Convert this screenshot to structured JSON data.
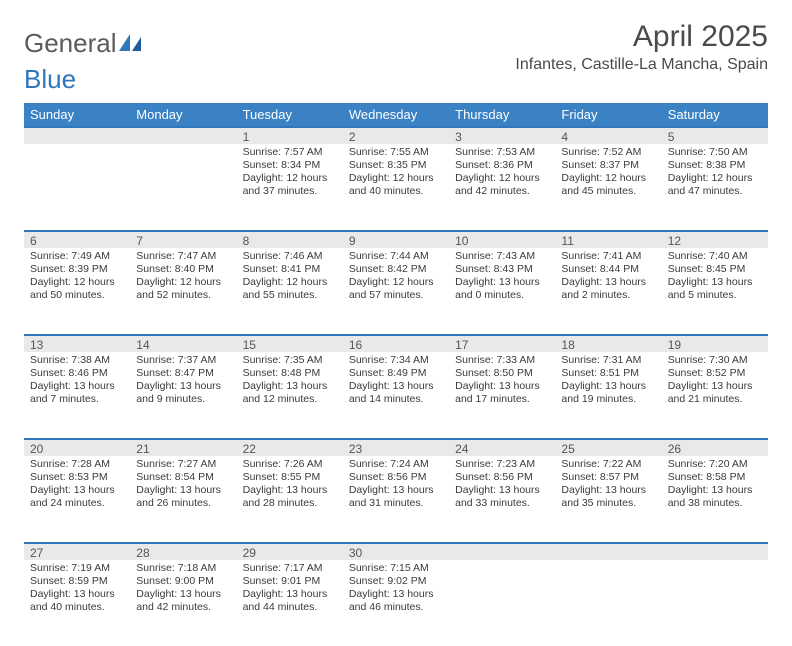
{
  "logo": {
    "text_a": "General",
    "text_b": "Blue"
  },
  "title": "April 2025",
  "location": "Infantes, Castille-La Mancha, Spain",
  "colors": {
    "header_bg": "#3a82c4",
    "header_text": "#ffffff",
    "daynum_bg": "#e9e9e9",
    "daynum_border": "#2f76ba",
    "body_text": "#3b3b3b",
    "title_text": "#4a4a4a",
    "logo_gray": "#5b5b5b",
    "logo_blue": "#2f76ba",
    "page_bg": "#ffffff"
  },
  "typography": {
    "title_fontsize": 30,
    "location_fontsize": 16,
    "dayhead_fontsize": 13,
    "daynum_fontsize": 12,
    "body_fontsize": 10.5,
    "font_family": "Arial"
  },
  "day_headers": [
    "Sunday",
    "Monday",
    "Tuesday",
    "Wednesday",
    "Thursday",
    "Friday",
    "Saturday"
  ],
  "weeks": [
    [
      null,
      null,
      {
        "n": "1",
        "sr": "Sunrise: 7:57 AM",
        "ss": "Sunset: 8:34 PM",
        "dl": "Daylight: 12 hours and 37 minutes."
      },
      {
        "n": "2",
        "sr": "Sunrise: 7:55 AM",
        "ss": "Sunset: 8:35 PM",
        "dl": "Daylight: 12 hours and 40 minutes."
      },
      {
        "n": "3",
        "sr": "Sunrise: 7:53 AM",
        "ss": "Sunset: 8:36 PM",
        "dl": "Daylight: 12 hours and 42 minutes."
      },
      {
        "n": "4",
        "sr": "Sunrise: 7:52 AM",
        "ss": "Sunset: 8:37 PM",
        "dl": "Daylight: 12 hours and 45 minutes."
      },
      {
        "n": "5",
        "sr": "Sunrise: 7:50 AM",
        "ss": "Sunset: 8:38 PM",
        "dl": "Daylight: 12 hours and 47 minutes."
      }
    ],
    [
      {
        "n": "6",
        "sr": "Sunrise: 7:49 AM",
        "ss": "Sunset: 8:39 PM",
        "dl": "Daylight: 12 hours and 50 minutes."
      },
      {
        "n": "7",
        "sr": "Sunrise: 7:47 AM",
        "ss": "Sunset: 8:40 PM",
        "dl": "Daylight: 12 hours and 52 minutes."
      },
      {
        "n": "8",
        "sr": "Sunrise: 7:46 AM",
        "ss": "Sunset: 8:41 PM",
        "dl": "Daylight: 12 hours and 55 minutes."
      },
      {
        "n": "9",
        "sr": "Sunrise: 7:44 AM",
        "ss": "Sunset: 8:42 PM",
        "dl": "Daylight: 12 hours and 57 minutes."
      },
      {
        "n": "10",
        "sr": "Sunrise: 7:43 AM",
        "ss": "Sunset: 8:43 PM",
        "dl": "Daylight: 13 hours and 0 minutes."
      },
      {
        "n": "11",
        "sr": "Sunrise: 7:41 AM",
        "ss": "Sunset: 8:44 PM",
        "dl": "Daylight: 13 hours and 2 minutes."
      },
      {
        "n": "12",
        "sr": "Sunrise: 7:40 AM",
        "ss": "Sunset: 8:45 PM",
        "dl": "Daylight: 13 hours and 5 minutes."
      }
    ],
    [
      {
        "n": "13",
        "sr": "Sunrise: 7:38 AM",
        "ss": "Sunset: 8:46 PM",
        "dl": "Daylight: 13 hours and 7 minutes."
      },
      {
        "n": "14",
        "sr": "Sunrise: 7:37 AM",
        "ss": "Sunset: 8:47 PM",
        "dl": "Daylight: 13 hours and 9 minutes."
      },
      {
        "n": "15",
        "sr": "Sunrise: 7:35 AM",
        "ss": "Sunset: 8:48 PM",
        "dl": "Daylight: 13 hours and 12 minutes."
      },
      {
        "n": "16",
        "sr": "Sunrise: 7:34 AM",
        "ss": "Sunset: 8:49 PM",
        "dl": "Daylight: 13 hours and 14 minutes."
      },
      {
        "n": "17",
        "sr": "Sunrise: 7:33 AM",
        "ss": "Sunset: 8:50 PM",
        "dl": "Daylight: 13 hours and 17 minutes."
      },
      {
        "n": "18",
        "sr": "Sunrise: 7:31 AM",
        "ss": "Sunset: 8:51 PM",
        "dl": "Daylight: 13 hours and 19 minutes."
      },
      {
        "n": "19",
        "sr": "Sunrise: 7:30 AM",
        "ss": "Sunset: 8:52 PM",
        "dl": "Daylight: 13 hours and 21 minutes."
      }
    ],
    [
      {
        "n": "20",
        "sr": "Sunrise: 7:28 AM",
        "ss": "Sunset: 8:53 PM",
        "dl": "Daylight: 13 hours and 24 minutes."
      },
      {
        "n": "21",
        "sr": "Sunrise: 7:27 AM",
        "ss": "Sunset: 8:54 PM",
        "dl": "Daylight: 13 hours and 26 minutes."
      },
      {
        "n": "22",
        "sr": "Sunrise: 7:26 AM",
        "ss": "Sunset: 8:55 PM",
        "dl": "Daylight: 13 hours and 28 minutes."
      },
      {
        "n": "23",
        "sr": "Sunrise: 7:24 AM",
        "ss": "Sunset: 8:56 PM",
        "dl": "Daylight: 13 hours and 31 minutes."
      },
      {
        "n": "24",
        "sr": "Sunrise: 7:23 AM",
        "ss": "Sunset: 8:56 PM",
        "dl": "Daylight: 13 hours and 33 minutes."
      },
      {
        "n": "25",
        "sr": "Sunrise: 7:22 AM",
        "ss": "Sunset: 8:57 PM",
        "dl": "Daylight: 13 hours and 35 minutes."
      },
      {
        "n": "26",
        "sr": "Sunrise: 7:20 AM",
        "ss": "Sunset: 8:58 PM",
        "dl": "Daylight: 13 hours and 38 minutes."
      }
    ],
    [
      {
        "n": "27",
        "sr": "Sunrise: 7:19 AM",
        "ss": "Sunset: 8:59 PM",
        "dl": "Daylight: 13 hours and 40 minutes."
      },
      {
        "n": "28",
        "sr": "Sunrise: 7:18 AM",
        "ss": "Sunset: 9:00 PM",
        "dl": "Daylight: 13 hours and 42 minutes."
      },
      {
        "n": "29",
        "sr": "Sunrise: 7:17 AM",
        "ss": "Sunset: 9:01 PM",
        "dl": "Daylight: 13 hours and 44 minutes."
      },
      {
        "n": "30",
        "sr": "Sunrise: 7:15 AM",
        "ss": "Sunset: 9:02 PM",
        "dl": "Daylight: 13 hours and 46 minutes."
      },
      null,
      null,
      null
    ]
  ]
}
